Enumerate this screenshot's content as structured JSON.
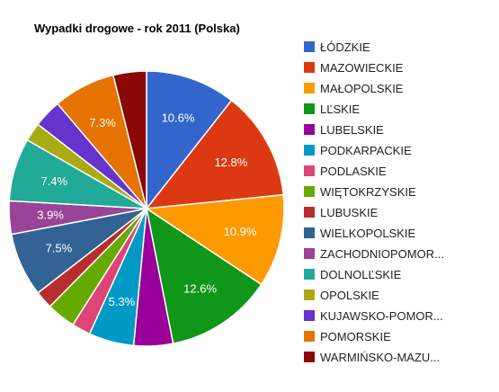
{
  "chart_data": {
    "type": "pie",
    "title": "Wypadki drogowe - rok 2011 (Polska)",
    "start_angle_deg": 0,
    "direction": "clockwise",
    "legend_position": "right",
    "slices": [
      {
        "name": "ŁÓDZKIE",
        "value": 10.6,
        "label": "10.6%",
        "color": "#3366cc"
      },
      {
        "name": "MAZOWIECKIE",
        "value": 12.8,
        "label": "12.8%",
        "color": "#dc3912"
      },
      {
        "name": "MAŁOPOLSKIE",
        "value": 10.9,
        "label": "10.9%",
        "color": "#ff9900"
      },
      {
        "name": "LĽSKIE",
        "value": 12.6,
        "label": "12.6%",
        "color": "#109618"
      },
      {
        "name": "LUBELSKIE",
        "value": 4.6,
        "label": "",
        "color": "#990099"
      },
      {
        "name": "PODKARPACKIE",
        "value": 5.3,
        "label": "5.3%",
        "color": "#0099c6"
      },
      {
        "name": "PODLASKIE",
        "value": 2.2,
        "label": "",
        "color": "#dd4477"
      },
      {
        "name": "WIĘTOKRZYSKIE",
        "value": 3.4,
        "label": "",
        "color": "#66aa00"
      },
      {
        "name": "LUBUSKIE",
        "value": 2.1,
        "label": "",
        "color": "#b82e2e"
      },
      {
        "name": "WIELKOPOLSKIE",
        "value": 7.5,
        "label": "7.5%",
        "color": "#316395"
      },
      {
        "name": "ZACHODNIOPOMOR...",
        "value": 3.9,
        "label": "3.9%",
        "color": "#994499"
      },
      {
        "name": "DOLNOLĽSKIE",
        "value": 7.4,
        "label": "7.4%",
        "color": "#22aa99"
      },
      {
        "name": "OPOLSKIE",
        "value": 2.2,
        "label": "",
        "color": "#aaaa11"
      },
      {
        "name": "KUJAWSKO-POMOR...",
        "value": 3.3,
        "label": "",
        "color": "#6633cc"
      },
      {
        "name": "POMORSKIE",
        "value": 7.3,
        "label": "7.3%",
        "color": "#e67300"
      },
      {
        "name": "WARMIŃSKO-MAZU...",
        "value": 3.9,
        "label": "",
        "color": "#8b0707"
      }
    ]
  }
}
